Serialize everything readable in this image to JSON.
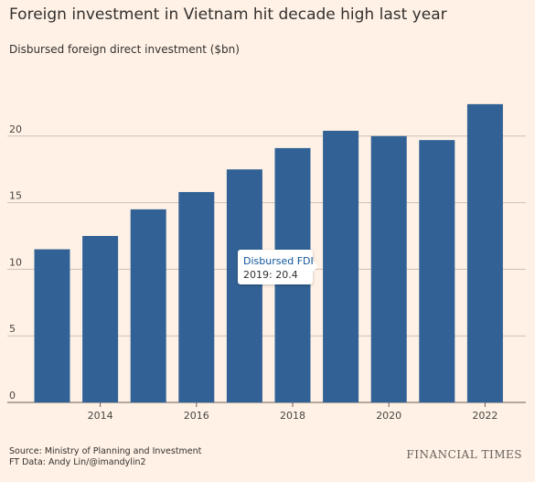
{
  "title": "Foreign investment in Vietnam hit decade high last year",
  "subtitle": "Disbursed foreign direct investment ($bn)",
  "tooltip": {
    "title": "Disbursed FDI",
    "year": "2019",
    "value": "20.4"
  },
  "footer": {
    "source": "Source: Ministry of Planning and Investment",
    "credit": "FT Data: Andy Lin/@imandylin2",
    "brand": "FINANCIAL TIMES"
  },
  "colors": {
    "background": "#fff1e5",
    "bar": "#326295",
    "gridline": "#ccc1b7",
    "tooltip_title": "#0f5499"
  },
  "chart_data": {
    "type": "bar",
    "categories": [
      "2013",
      "2014",
      "2015",
      "2016",
      "2017",
      "2018",
      "2019",
      "2020",
      "2021",
      "2022"
    ],
    "values": [
      11.5,
      12.5,
      14.5,
      15.8,
      17.5,
      19.1,
      20.4,
      20.0,
      19.7,
      22.4
    ],
    "x_tick_labels": [
      "2014",
      "2016",
      "2018",
      "2020",
      "2022"
    ],
    "y_ticks": [
      0,
      5,
      10,
      15,
      20
    ],
    "ylim": [
      0,
      25
    ],
    "title": "Foreign investment in Vietnam hit decade high last year",
    "subtitle": "Disbursed foreign direct investment ($bn)",
    "xlabel": "",
    "ylabel": "",
    "grid": true
  }
}
